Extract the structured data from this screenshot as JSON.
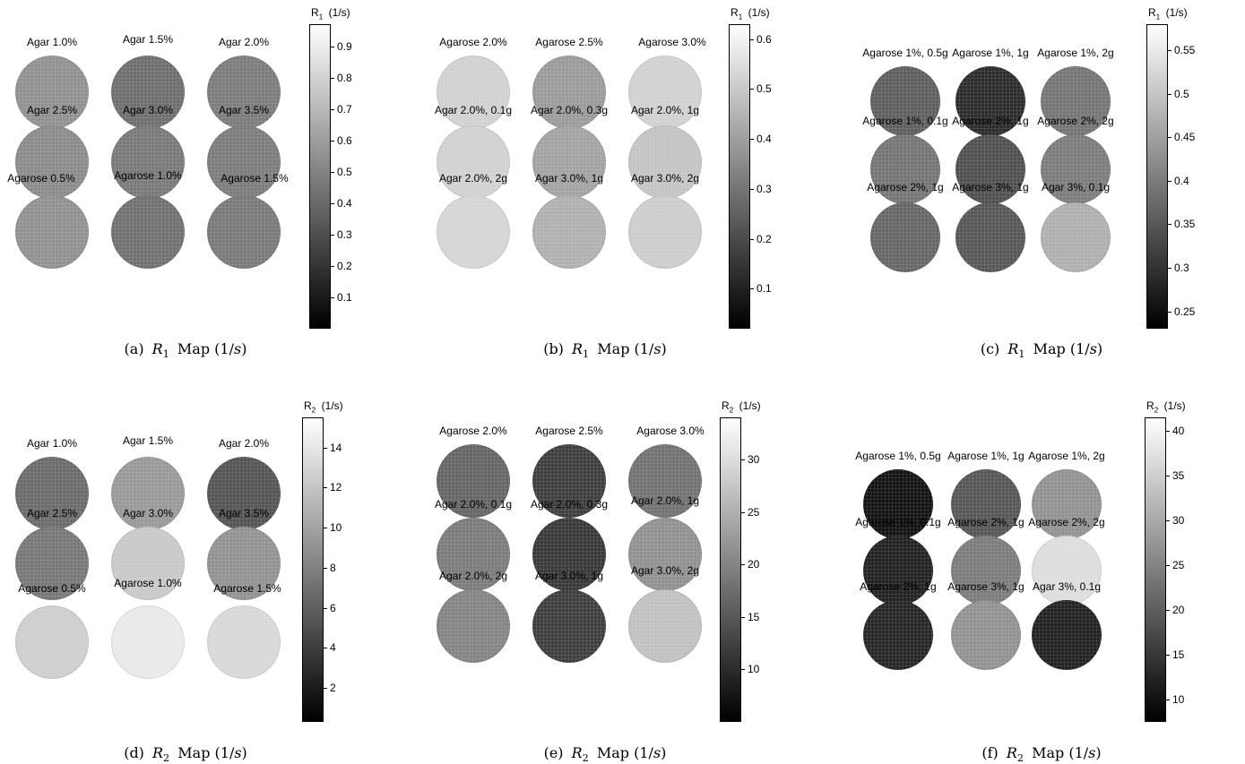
{
  "panels": [
    {
      "id": "a",
      "colorbar": {
        "title": "R",
        "sub": "1",
        "unit": "(1/s)",
        "ticks": [
          "0.9",
          "0.8",
          "0.7",
          "0.6",
          "0.5",
          "0.4",
          "0.3",
          "0.2",
          "0.1"
        ],
        "min": 0.0,
        "max": 0.97
      },
      "samples": [
        {
          "label": "Agar 1.0%",
          "value": 0.55
        },
        {
          "label": "Agar 1.5%",
          "value": 0.42
        },
        {
          "label": "Agar 2.0%",
          "value": 0.47
        },
        {
          "label": "Agar 2.5%",
          "value": 0.53
        },
        {
          "label": "Agar 3.0%",
          "value": 0.46
        },
        {
          "label": "Agar 3.5%",
          "value": 0.47
        },
        {
          "label": "Agarose 0.5%",
          "value": 0.55
        },
        {
          "label": "Agarose 1.0%",
          "value": 0.43
        },
        {
          "label": "Agarose 1.5%",
          "value": 0.46
        }
      ],
      "caption": {
        "prefix": "(a)",
        "sym": "R",
        "sub": "1",
        "text": "Map (1/",
        "var": "s",
        "close": ")"
      }
    },
    {
      "id": "b",
      "colorbar": {
        "title": "R",
        "sub": "1",
        "unit": "(1/s)",
        "ticks": [
          "0.6",
          "0.5",
          "0.4",
          "0.3",
          "0.2",
          "0.1"
        ],
        "min": 0.02,
        "max": 0.63
      },
      "samples": [
        {
          "label": "Agarose 2.0%",
          "value": 0.52
        },
        {
          "label": "Agarose 2.5%",
          "value": 0.39
        },
        {
          "label": "Agarose 3.0%",
          "value": 0.52
        },
        {
          "label": "Agar 2.0%, 0.1g",
          "value": 0.52
        },
        {
          "label": "Agar 2.0%, 0.3g",
          "value": 0.41
        },
        {
          "label": "Agar 2.0%, 1g",
          "value": 0.49
        },
        {
          "label": "Agar 2.0%, 2g",
          "value": 0.53
        },
        {
          "label": "Agar 3.0%, 1g",
          "value": 0.44
        },
        {
          "label": "Agar 3.0%, 2g",
          "value": 0.51
        }
      ],
      "caption": {
        "prefix": "(b)",
        "sym": "R",
        "sub": "1",
        "text": "Map (1/",
        "var": "s",
        "close": ")"
      }
    },
    {
      "id": "c",
      "colorbar": {
        "title": "R",
        "sub": "1",
        "unit": "(1/s)",
        "ticks": [
          "0.55",
          "0.5",
          "0.45",
          "0.4",
          "0.35",
          "0.3",
          "0.25"
        ],
        "min": 0.23,
        "max": 0.58
      },
      "samples": [
        {
          "label": "Agarose 1%, 0.5g",
          "value": 0.36
        },
        {
          "label": "Agarose 1%, 1g",
          "value": 0.29
        },
        {
          "label": "Agarose 1%, 2g",
          "value": 0.39
        },
        {
          "label": "Agarose 1%, 0.1g",
          "value": 0.39
        },
        {
          "label": "Agarose 2%, 1g",
          "value": 0.34
        },
        {
          "label": "Agarose 2%, 2g",
          "value": 0.4
        },
        {
          "label": "Agarose 2%, 1g",
          "value": 0.37
        },
        {
          "label": "Agarose 3%, 1g",
          "value": 0.35
        },
        {
          "label": "Agar 3%, 0.1g",
          "value": 0.47
        }
      ],
      "caption": {
        "prefix": "(c)",
        "sym": "R",
        "sub": "1",
        "text": "Map (1/",
        "var": "s",
        "close": ")"
      }
    },
    {
      "id": "d",
      "colorbar": {
        "title": "R",
        "sub": "2",
        "unit": "(1/s)",
        "ticks": [
          "14",
          "12",
          "10",
          "8",
          "6",
          "4",
          "2"
        ],
        "min": 0.3,
        "max": 15.5
      },
      "samples": [
        {
          "label": "Agar 1.0%",
          "value": 6.7
        },
        {
          "label": "Agar 1.5%",
          "value": 9.4
        },
        {
          "label": "Agar 2.0%",
          "value": 5.3
        },
        {
          "label": "Agar 2.5%",
          "value": 7.4
        },
        {
          "label": "Agar 3.0%",
          "value": 12.3
        },
        {
          "label": "Agar 3.5%",
          "value": 9.0
        },
        {
          "label": "Agarose 0.5%",
          "value": 12.6
        },
        {
          "label": "Agarose 1.0%",
          "value": 14.2
        },
        {
          "label": "Agarose 1.5%",
          "value": 13.2
        }
      ],
      "caption": {
        "prefix": "(d)",
        "sym": "R",
        "sub": "2",
        "text": "Map (1/",
        "var": "s",
        "close": ")"
      }
    },
    {
      "id": "e",
      "colorbar": {
        "title": "R",
        "sub": "2",
        "unit": "(1/s)",
        "ticks": [
          "30",
          "25",
          "20",
          "15",
          "10"
        ],
        "min": 5.0,
        "max": 34.0
      },
      "samples": [
        {
          "label": "Agarose 2.0%",
          "value": 16.5
        },
        {
          "label": "Agarose 2.5%",
          "value": 12.0
        },
        {
          "label": "Agarose 3.0%",
          "value": 18.0
        },
        {
          "label": "Agar 2.0%, 0.1g",
          "value": 19.0
        },
        {
          "label": "Agar 2.0%, 0.3g",
          "value": 11.5
        },
        {
          "label": "Agar 2.0%, 1g",
          "value": 21.5
        },
        {
          "label": "Agar 2.0%, 2g",
          "value": 20.0
        },
        {
          "label": "Agar 3.0%, 1g",
          "value": 12.0
        },
        {
          "label": "Agar 3.0%, 2g",
          "value": 27.0
        }
      ],
      "caption": {
        "prefix": "(e)",
        "sym": "R",
        "sub": "2",
        "text": "Map (1/",
        "var": "s",
        "close": ")"
      }
    },
    {
      "id": "f",
      "colorbar": {
        "title": "R",
        "sub": "2",
        "unit": "(1/s)",
        "ticks": [
          "40",
          "35",
          "30",
          "25",
          "20",
          "15",
          "10"
        ],
        "min": 7.5,
        "max": 41.5
      },
      "samples": [
        {
          "label": "Agarose 1%, 0.5g",
          "value": 10.0
        },
        {
          "label": "Agarose 1%, 1g",
          "value": 19.0
        },
        {
          "label": "Agarose 1%, 2g",
          "value": 27.0
        },
        {
          "label": "Agarose 1%, 0.1g",
          "value": 12.0
        },
        {
          "label": "Agarose 2%, 1g",
          "value": 24.0
        },
        {
          "label": "Agarose 2%, 2g",
          "value": 37.0
        },
        {
          "label": "Agarose 2%, 1g",
          "value": 12.5
        },
        {
          "label": "Agarose 3%, 1g",
          "value": 27.0
        },
        {
          "label": "Agar 3%, 0.1g",
          "value": 12.0
        }
      ],
      "caption": {
        "prefix": "(f)",
        "sym": "R",
        "sub": "2",
        "text": "Map (1/",
        "var": "s",
        "close": ")"
      }
    }
  ]
}
